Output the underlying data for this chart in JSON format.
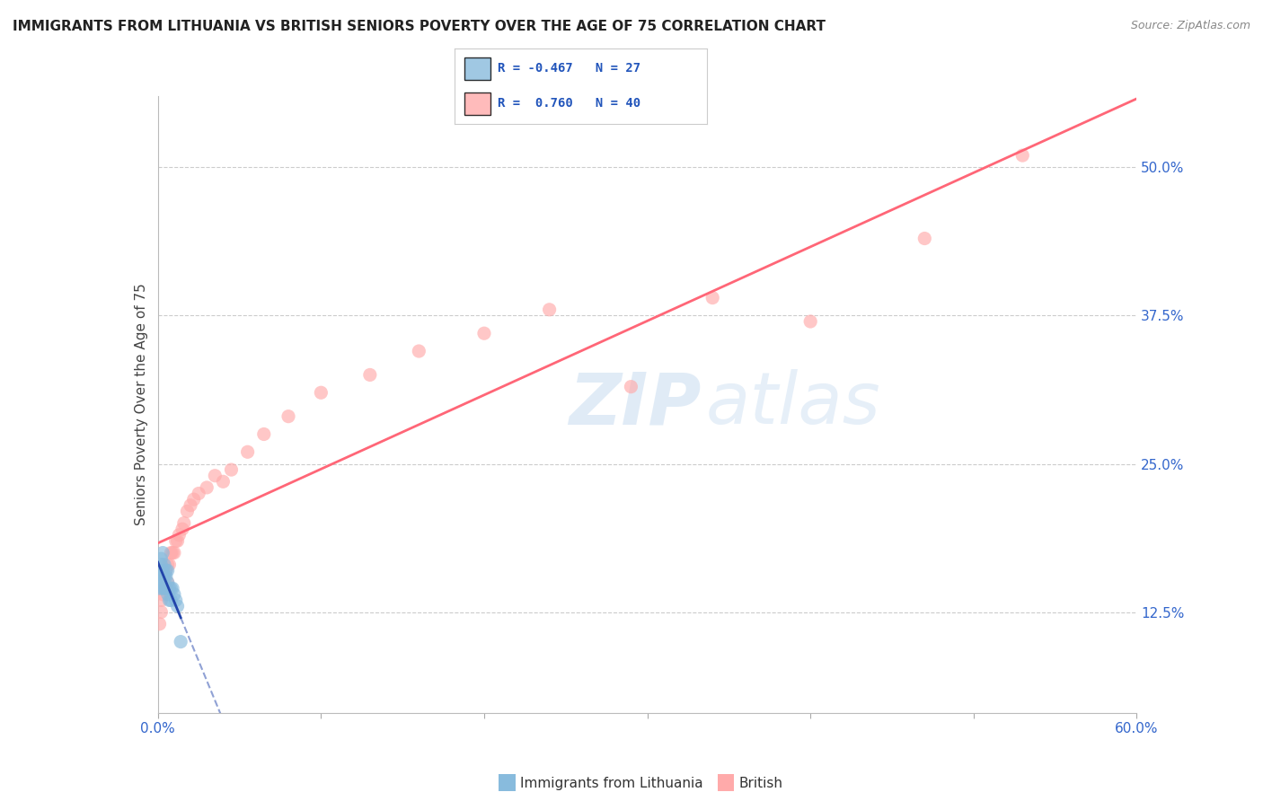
{
  "title": "IMMIGRANTS FROM LITHUANIA VS BRITISH SENIORS POVERTY OVER THE AGE OF 75 CORRELATION CHART",
  "source": "Source: ZipAtlas.com",
  "ylabel": "Seniors Poverty Over the Age of 75",
  "xlim": [
    0.0,
    0.6
  ],
  "ylim": [
    0.04,
    0.56
  ],
  "xticks": [
    0.0,
    0.1,
    0.2,
    0.3,
    0.4,
    0.5,
    0.6
  ],
  "xticklabels": [
    "0.0%",
    "",
    "",
    "",
    "",
    "",
    "60.0%"
  ],
  "yticks_right": [
    0.125,
    0.25,
    0.375,
    0.5
  ],
  "ytick_right_labels": [
    "12.5%",
    "25.0%",
    "37.5%",
    "50.0%"
  ],
  "blue_color": "#88BBDD",
  "pink_color": "#FFAAAA",
  "blue_line_color": "#2244AA",
  "pink_line_color": "#FF6677",
  "background_color": "#FFFFFF",
  "grid_color": "#CCCCCC",
  "blue_scatter_x": [
    0.001,
    0.001,
    0.002,
    0.002,
    0.002,
    0.003,
    0.003,
    0.003,
    0.003,
    0.004,
    0.004,
    0.004,
    0.005,
    0.005,
    0.005,
    0.006,
    0.006,
    0.006,
    0.007,
    0.007,
    0.008,
    0.008,
    0.009,
    0.01,
    0.011,
    0.012,
    0.014
  ],
  "blue_scatter_y": [
    0.155,
    0.145,
    0.165,
    0.15,
    0.17,
    0.16,
    0.145,
    0.175,
    0.155,
    0.165,
    0.155,
    0.145,
    0.155,
    0.145,
    0.16,
    0.16,
    0.15,
    0.14,
    0.145,
    0.135,
    0.145,
    0.135,
    0.145,
    0.14,
    0.135,
    0.13,
    0.1
  ],
  "pink_scatter_x": [
    0.001,
    0.002,
    0.002,
    0.003,
    0.004,
    0.004,
    0.005,
    0.005,
    0.006,
    0.006,
    0.007,
    0.008,
    0.009,
    0.01,
    0.011,
    0.012,
    0.013,
    0.015,
    0.016,
    0.018,
    0.02,
    0.022,
    0.025,
    0.03,
    0.035,
    0.04,
    0.045,
    0.055,
    0.065,
    0.08,
    0.1,
    0.13,
    0.16,
    0.2,
    0.24,
    0.29,
    0.34,
    0.4,
    0.47,
    0.53
  ],
  "pink_scatter_y": [
    0.115,
    0.125,
    0.135,
    0.14,
    0.145,
    0.155,
    0.145,
    0.16,
    0.15,
    0.165,
    0.165,
    0.175,
    0.175,
    0.175,
    0.185,
    0.185,
    0.19,
    0.195,
    0.2,
    0.21,
    0.215,
    0.22,
    0.225,
    0.23,
    0.24,
    0.235,
    0.245,
    0.26,
    0.275,
    0.29,
    0.31,
    0.325,
    0.345,
    0.36,
    0.38,
    0.315,
    0.39,
    0.37,
    0.44,
    0.51
  ],
  "watermark_line1": "ZIP",
  "watermark_line2": "atlas",
  "title_fontsize": 11,
  "axis_label_fontsize": 11,
  "tick_fontsize": 11
}
